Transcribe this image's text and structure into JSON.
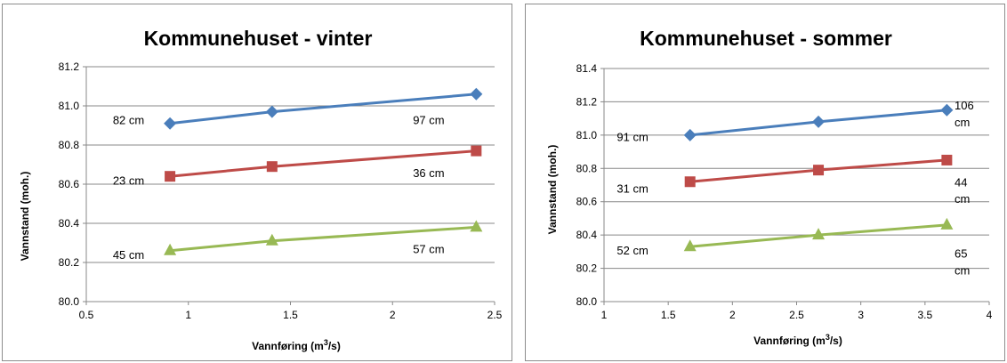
{
  "chart_data": [
    {
      "type": "line",
      "title": "Kommunehuset - vinter",
      "ylabel": "Vannstand (moh.)",
      "xlabel": "Vannføring (m³/s)",
      "xlim": [
        0.5,
        2.5
      ],
      "ylim": [
        80.0,
        81.2
      ],
      "xticks": [
        "0.5",
        "1",
        "1.5",
        "2",
        "2.5"
      ],
      "yticks": [
        "80.0",
        "80.2",
        "80.4",
        "80.6",
        "80.8",
        "81.0",
        "81.2"
      ],
      "grid": "horizontal",
      "series": [
        {
          "x": [
            0.91,
            1.41,
            2.41
          ],
          "y": [
            80.91,
            80.97,
            81.06
          ],
          "color": "#4a7ebb",
          "marker": "diamond",
          "labels": [
            {
              "text": "82 cm",
              "x": 0.63,
              "y": 80.93
            },
            {
              "text": "97 cm",
              "x": 2.1,
              "y": 80.93
            }
          ]
        },
        {
          "x": [
            0.91,
            1.41,
            2.41
          ],
          "y": [
            80.64,
            80.69,
            80.77
          ],
          "color": "#be4b48",
          "marker": "square",
          "labels": [
            {
              "text": "23 cm",
              "x": 0.63,
              "y": 80.62
            },
            {
              "text": "36 cm",
              "x": 2.1,
              "y": 80.66
            }
          ]
        },
        {
          "x": [
            0.91,
            1.41,
            2.41
          ],
          "y": [
            80.26,
            80.31,
            80.38
          ],
          "color": "#98b954",
          "marker": "triangle",
          "labels": [
            {
              "text": "45 cm",
              "x": 0.63,
              "y": 80.24
            },
            {
              "text": "57 cm",
              "x": 2.1,
              "y": 80.27
            }
          ]
        }
      ]
    },
    {
      "type": "line",
      "title": "Kommunehuset - sommer",
      "ylabel": "Vannstand (moh.)",
      "xlabel": "Vannføring (m³/s)",
      "xlim": [
        1,
        4
      ],
      "ylim": [
        80.0,
        81.4
      ],
      "xticks": [
        "1",
        "1.5",
        "2",
        "2.5",
        "3",
        "3.5",
        "4"
      ],
      "yticks": [
        "80.0",
        "80.2",
        "80.4",
        "80.6",
        "80.8",
        "81.0",
        "81.2",
        "81.4"
      ],
      "grid": "horizontal",
      "series": [
        {
          "x": [
            1.67,
            2.67,
            3.67
          ],
          "y": [
            81.0,
            81.08,
            81.15
          ],
          "color": "#4a7ebb",
          "marker": "diamond",
          "labels": [
            {
              "text": "91 cm",
              "x": 1.1,
              "y": 80.99
            },
            {
              "text": "106",
              "x": 3.73,
              "y": 81.18
            },
            {
              "text": "cm",
              "x": 3.73,
              "y": 81.08
            }
          ]
        },
        {
          "x": [
            1.67,
            2.67,
            3.67
          ],
          "y": [
            80.72,
            80.79,
            80.85
          ],
          "color": "#be4b48",
          "marker": "square",
          "labels": [
            {
              "text": "31 cm",
              "x": 1.1,
              "y": 80.68
            },
            {
              "text": "44",
              "x": 3.73,
              "y": 80.72
            },
            {
              "text": "cm",
              "x": 3.73,
              "y": 80.62
            }
          ]
        },
        {
          "x": [
            1.67,
            2.67,
            3.67
          ],
          "y": [
            80.33,
            80.4,
            80.46
          ],
          "color": "#98b954",
          "marker": "triangle",
          "labels": [
            {
              "text": "52 cm",
              "x": 1.1,
              "y": 80.31
            },
            {
              "text": "65",
              "x": 3.73,
              "y": 80.29
            },
            {
              "text": "cm",
              "x": 3.73,
              "y": 80.19
            }
          ]
        }
      ]
    }
  ]
}
